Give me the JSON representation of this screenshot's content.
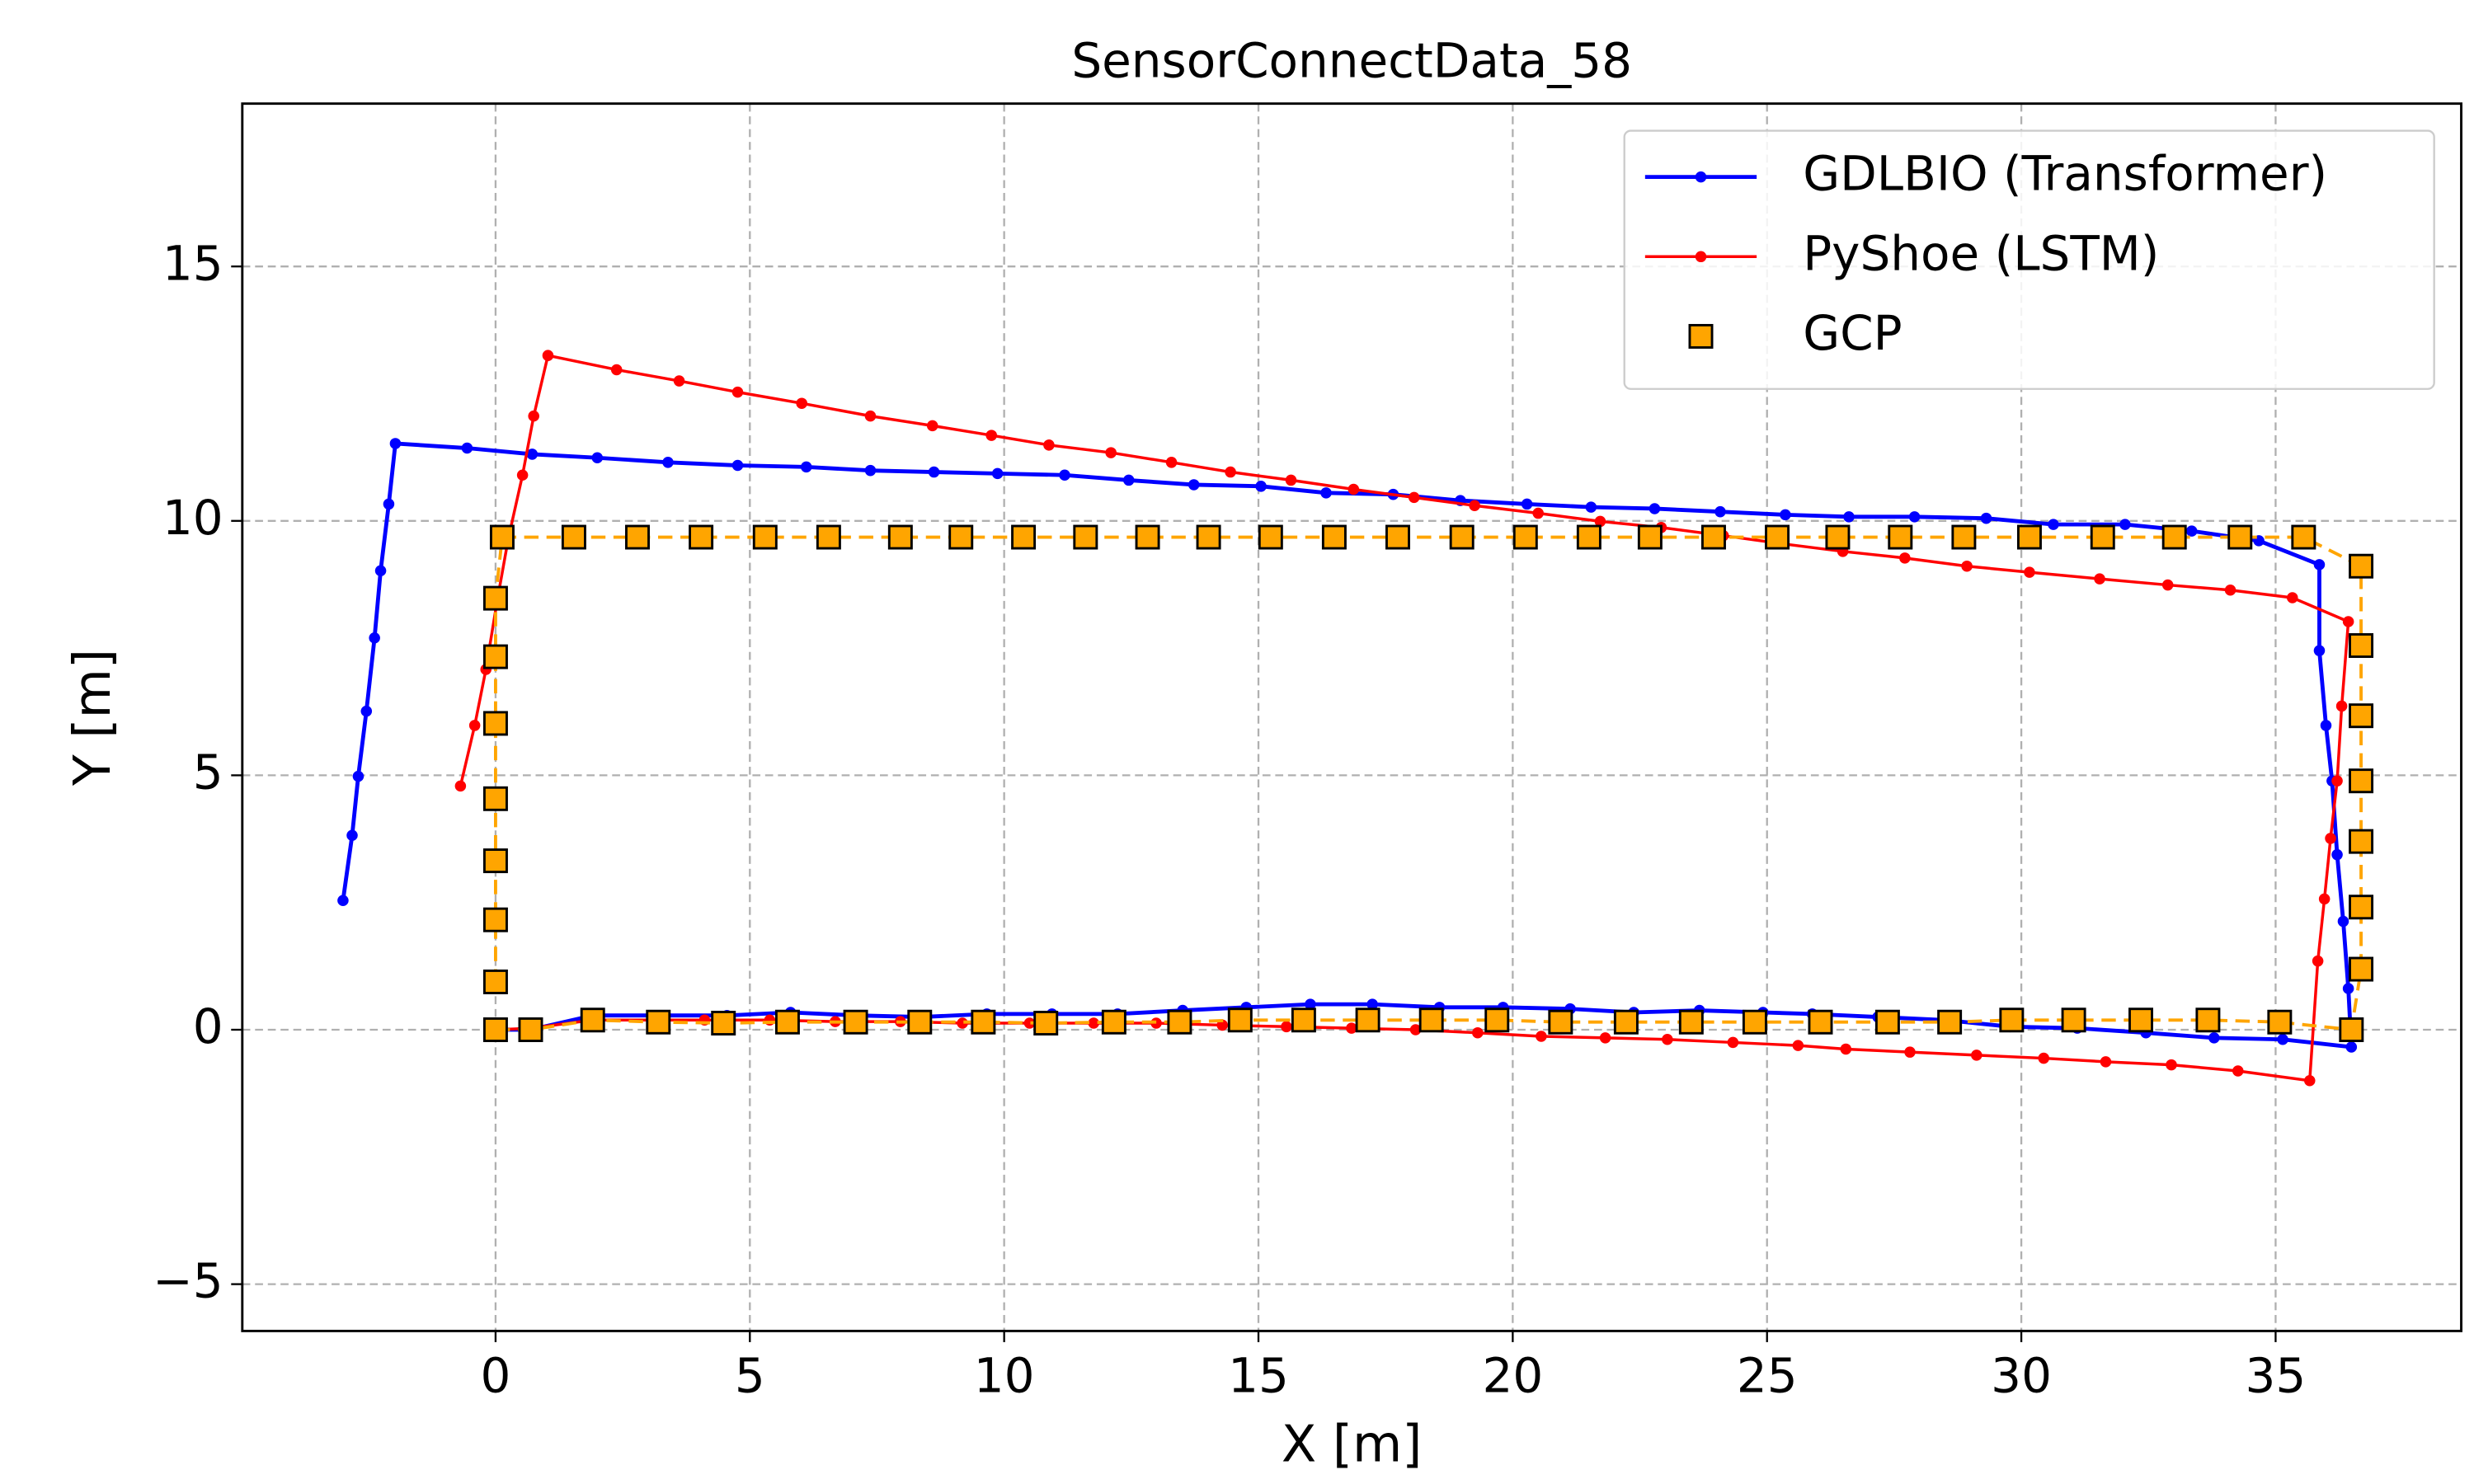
{
  "chart_data": {
    "type": "line",
    "title": "SensorConnectData_58",
    "x_label": "X [m]",
    "y_label": "Y [m]",
    "xlim": [
      -4.98,
      38.65
    ],
    "ylim": [
      -5.92,
      18.2
    ],
    "xticks": [
      0,
      5,
      10,
      15,
      20,
      25,
      30,
      35
    ],
    "yticks": [
      {
        "value": -5,
        "label": "−5"
      },
      0,
      5,
      10,
      15
    ],
    "grid": true,
    "legend": "upper right",
    "series": [
      {
        "name": "GDLBIO (Transformer)",
        "color": "#0000ff",
        "marker": "circle",
        "linestyle": "solid",
        "linewidth": 2.5,
        "x": [
          -3.0,
          -2.82,
          -2.7,
          -2.54,
          -2.38,
          -2.26,
          -2.1,
          -1.97,
          -0.56,
          0.72,
          2.0,
          3.39,
          4.76,
          6.11,
          7.37,
          8.62,
          9.87,
          11.19,
          12.45,
          13.73,
          15.05,
          16.33,
          17.65,
          18.97,
          20.28,
          21.54,
          22.79,
          24.08,
          25.36,
          26.61,
          27.9,
          29.31,
          30.63,
          32.04,
          33.35,
          34.67,
          35.86,
          35.86,
          35.99,
          36.11,
          36.21,
          36.33,
          36.43,
          36.49,
          35.14,
          33.79,
          32.45,
          31.1,
          29.78,
          28.5,
          27.18,
          25.89,
          24.92,
          23.67,
          22.38,
          21.13,
          19.81,
          18.56,
          17.24,
          16.02,
          14.76,
          13.51,
          12.23,
          10.94,
          9.66,
          8.37,
          7.12,
          5.8,
          4.55,
          3.26,
          1.91,
          0.69,
          0
        ],
        "values": [
          2.54,
          3.82,
          4.98,
          6.26,
          7.7,
          9.02,
          10.33,
          11.52,
          11.43,
          11.31,
          11.24,
          11.15,
          11.09,
          11.06,
          10.99,
          10.96,
          10.93,
          10.9,
          10.8,
          10.71,
          10.68,
          10.55,
          10.52,
          10.4,
          10.33,
          10.27,
          10.24,
          10.18,
          10.12,
          10.08,
          10.08,
          10.05,
          9.93,
          9.93,
          9.8,
          9.61,
          9.14,
          7.45,
          5.98,
          4.89,
          3.44,
          2.13,
          0.81,
          -0.34,
          -0.19,
          -0.16,
          -0.06,
          0.03,
          0.06,
          0.19,
          0.25,
          0.31,
          0.34,
          0.38,
          0.34,
          0.41,
          0.44,
          0.44,
          0.5,
          0.5,
          0.44,
          0.38,
          0.31,
          0.31,
          0.31,
          0.25,
          0.28,
          0.34,
          0.28,
          0.28,
          0.28,
          0.0,
          0
        ]
      },
      {
        "name": "PyShoe (LSTM)",
        "color": "#ff0000",
        "marker": "circle",
        "linestyle": "solid",
        "linewidth": 1.8,
        "x": [
          -0.69,
          -0.41,
          -0.19,
          0.03,
          0.25,
          0.53,
          0.75,
          1.03,
          2.38,
          3.61,
          4.76,
          6.02,
          7.37,
          8.59,
          9.75,
          10.88,
          12.1,
          13.29,
          14.45,
          15.64,
          16.87,
          18.06,
          19.25,
          20.5,
          21.72,
          22.92,
          24.14,
          25.3,
          26.49,
          27.71,
          28.93,
          30.16,
          31.54,
          32.88,
          34.11,
          35.33,
          36.43,
          36.3,
          36.21,
          36.08,
          35.96,
          35.83,
          35.67,
          34.26,
          32.95,
          31.66,
          30.44,
          29.12,
          27.81,
          26.55,
          25.61,
          24.33,
          23.04,
          21.82,
          20.56,
          19.31,
          18.09,
          16.83,
          15.55,
          14.29,
          12.99,
          11.76,
          10.5,
          9.18,
          7.96,
          6.68,
          5.39,
          4.11,
          3.17,
          1.91,
          0.69,
          0
        ],
        "values": [
          4.79,
          5.98,
          7.08,
          8.42,
          9.65,
          10.9,
          12.06,
          13.25,
          12.97,
          12.75,
          12.53,
          12.31,
          12.06,
          11.87,
          11.68,
          11.49,
          11.34,
          11.15,
          10.96,
          10.8,
          10.62,
          10.46,
          10.3,
          10.15,
          9.99,
          9.87,
          9.71,
          9.55,
          9.4,
          9.27,
          9.11,
          8.99,
          8.86,
          8.74,
          8.64,
          8.49,
          8.02,
          6.36,
          4.89,
          3.76,
          2.57,
          1.35,
          -1.0,
          -0.81,
          -0.69,
          -0.63,
          -0.56,
          -0.5,
          -0.44,
          -0.38,
          -0.31,
          -0.25,
          -0.19,
          -0.16,
          -0.13,
          -0.06,
          0.0,
          0.03,
          0.06,
          0.09,
          0.13,
          0.13,
          0.13,
          0.13,
          0.16,
          0.16,
          0.19,
          0.19,
          0.19,
          0.19,
          0.03,
          0
        ]
      },
      {
        "name": "GCP",
        "color": "#ffa500",
        "marker": "square",
        "linestyle": "dashed",
        "linewidth": 2,
        "x": [
          0,
          0.69,
          1.91,
          3.2,
          4.48,
          5.74,
          7.08,
          8.34,
          9.59,
          10.82,
          12.16,
          13.45,
          14.64,
          15.89,
          17.15,
          18.4,
          19.69,
          20.94,
          22.23,
          23.51,
          24.76,
          26.05,
          27.37,
          28.59,
          29.81,
          31.03,
          32.35,
          33.67,
          35.08,
          36.49,
          36.68,
          36.68,
          36.68,
          36.68,
          36.68,
          36.68,
          36.68,
          35.55,
          34.3,
          33.01,
          31.6,
          30.16,
          28.87,
          27.62,
          26.39,
          25.2,
          23.95,
          22.7,
          21.5,
          20.25,
          19.0,
          17.74,
          16.49,
          15.24,
          14.02,
          12.82,
          11.6,
          10.38,
          9.15,
          7.96,
          6.55,
          5.3,
          4.04,
          2.79,
          1.54,
          0.13,
          0,
          0,
          0,
          0,
          0,
          0,
          0
        ],
        "values": [
          0,
          0,
          0.19,
          0.15,
          0.13,
          0.15,
          0.15,
          0.15,
          0.15,
          0.13,
          0.15,
          0.15,
          0.19,
          0.19,
          0.19,
          0.19,
          0.19,
          0.15,
          0.15,
          0.15,
          0.15,
          0.15,
          0.15,
          0.15,
          0.19,
          0.19,
          0.19,
          0.19,
          0.15,
          0,
          1.19,
          2.41,
          3.7,
          4.89,
          6.17,
          7.55,
          9.11,
          9.68,
          9.68,
          9.68,
          9.68,
          9.68,
          9.68,
          9.68,
          9.68,
          9.68,
          9.68,
          9.68,
          9.68,
          9.68,
          9.68,
          9.68,
          9.68,
          9.68,
          9.68,
          9.68,
          9.68,
          9.68,
          9.68,
          9.68,
          9.68,
          9.68,
          9.68,
          9.68,
          9.68,
          9.68,
          8.48,
          7.33,
          6.02,
          4.54,
          3.32,
          2.16,
          0.94
        ]
      }
    ]
  }
}
